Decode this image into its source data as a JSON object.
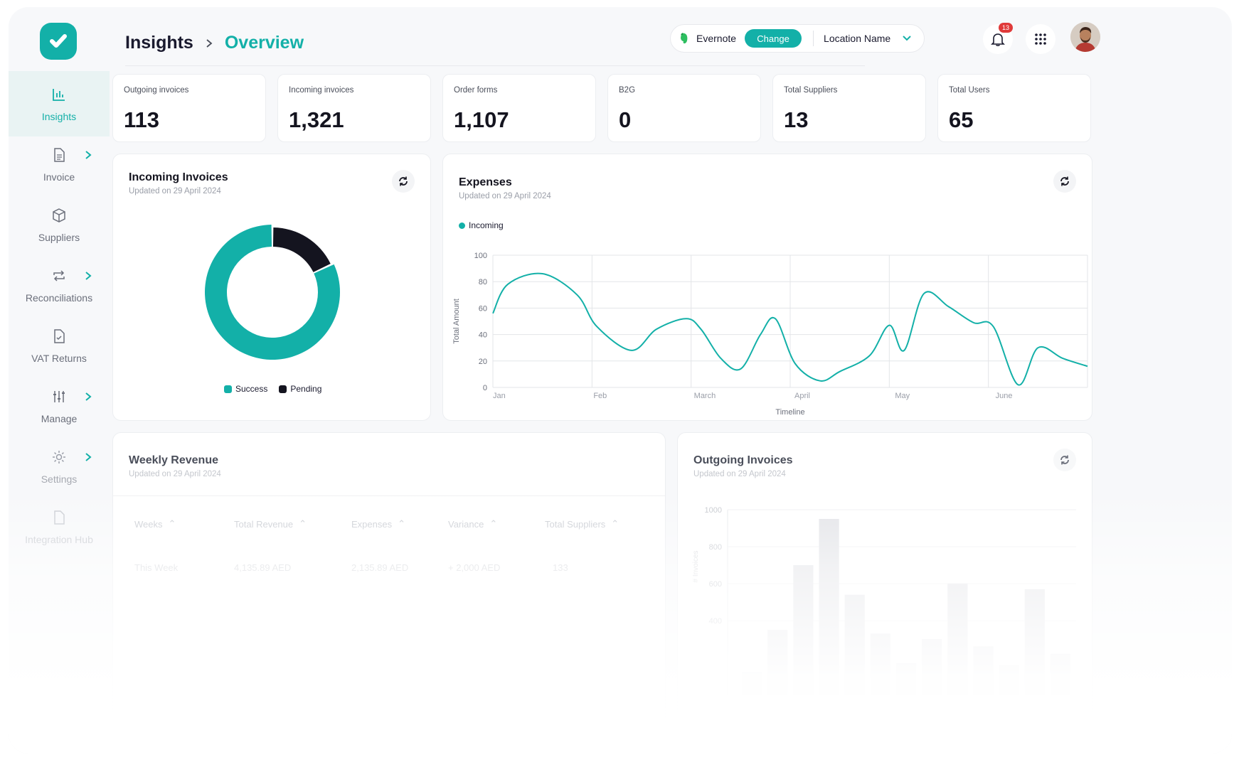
{
  "brand": {
    "accent": "#13b0a8",
    "dark": "#14141f",
    "icon": "check-logo-icon"
  },
  "sidebar": {
    "items": [
      {
        "label": "Insights",
        "icon": "bar-chart-icon",
        "active": true,
        "has_children": false
      },
      {
        "label": "Invoice",
        "icon": "document-icon",
        "active": false,
        "has_children": true
      },
      {
        "label": "Suppliers",
        "icon": "box-icon",
        "active": false,
        "has_children": false
      },
      {
        "label": "Reconciliations",
        "icon": "repeat-icon",
        "active": false,
        "has_children": true
      },
      {
        "label": "VAT Returns",
        "icon": "file-check-icon",
        "active": false,
        "has_children": false
      },
      {
        "label": "Manage",
        "icon": "sliders-icon",
        "active": false,
        "has_children": true
      },
      {
        "label": "Settings",
        "icon": "gear-icon",
        "active": false,
        "has_children": true
      },
      {
        "label": "Integration Hub",
        "icon": "plug-icon",
        "active": false,
        "has_children": false
      }
    ]
  },
  "header": {
    "breadcrumb_root": "Insights",
    "breadcrumb_current": "Overview",
    "connected_app": "Evernote",
    "change_label": "Change",
    "location": "Location Name",
    "notification_count": "13"
  },
  "stats": [
    {
      "label": "Outgoing invoices",
      "value": "113"
    },
    {
      "label": "Incoming invoices",
      "value": "1,321"
    },
    {
      "label": "Order forms",
      "value": "1,107"
    },
    {
      "label": "B2G",
      "value": "0"
    },
    {
      "label": "Total Suppliers",
      "value": "13"
    },
    {
      "label": "Total Users",
      "value": "65"
    }
  ],
  "incoming_panel": {
    "title": "Incoming Invoices",
    "updated": "Updated on 29 April 2024",
    "legend_success": "Success",
    "legend_pending": "Pending"
  },
  "expenses_panel": {
    "title": "Expenses",
    "updated": "Updated on 29 April 2024",
    "legend": "Incoming"
  },
  "weekly_panel": {
    "title": "Weekly Revenue",
    "updated": "Updated on 29 April 2024",
    "columns": [
      "Weeks",
      "Total Revenue",
      "Expenses",
      "Variance",
      "Total Suppliers"
    ],
    "row": [
      "This Week",
      "4,135.89 AED",
      "2,135.89 AED",
      "+ 2,000 AED",
      "133"
    ]
  },
  "outgoing_panel": {
    "title": "Outgoing Invoices",
    "updated": "Updated on 29 April 2024"
  },
  "chart_data": [
    {
      "type": "pie",
      "title": "Incoming Invoices",
      "labels": [
        "Success",
        "Pending"
      ],
      "values": [
        82,
        18
      ],
      "colors": [
        "#13b0a8",
        "#14141f"
      ]
    },
    {
      "type": "line",
      "title": "Expenses",
      "series": [
        {
          "name": "Incoming",
          "color": "#13b0a8",
          "x": [
            0,
            0.3,
            1.0,
            1.7,
            2.1,
            2.8,
            3.3,
            3.9,
            4.2,
            4.6,
            5.0,
            5.4,
            5.7,
            6.1,
            6.6,
            7.0,
            7.6,
            8.0,
            8.3,
            8.7,
            9.2,
            9.7,
            10.1,
            10.6,
            11.0,
            11.5,
            12.0
          ],
          "y": [
            56,
            78,
            86,
            70,
            46,
            28,
            44,
            52,
            44,
            22,
            14,
            40,
            52,
            18,
            5,
            12,
            24,
            47,
            28,
            71,
            61,
            49,
            46,
            2,
            30,
            22,
            16
          ]
        }
      ],
      "categories": [
        "Jan",
        "Feb",
        "March",
        "April",
        "May",
        "June"
      ],
      "xlabel": "Timeline",
      "ylabel": "Total Amount",
      "yticks": [
        0,
        20,
        40,
        60,
        80,
        100
      ],
      "ylim": [
        0,
        100
      ],
      "xlim": [
        0,
        12
      ]
    },
    {
      "type": "bar",
      "title": "Outgoing Invoices",
      "ylabel": "# Invoices",
      "yticks": [
        400,
        600,
        800,
        1000
      ],
      "ylim": [
        0,
        1000
      ],
      "values": [
        120,
        350,
        700,
        950,
        540,
        330,
        170,
        300,
        600,
        260,
        160,
        570,
        220
      ]
    }
  ]
}
